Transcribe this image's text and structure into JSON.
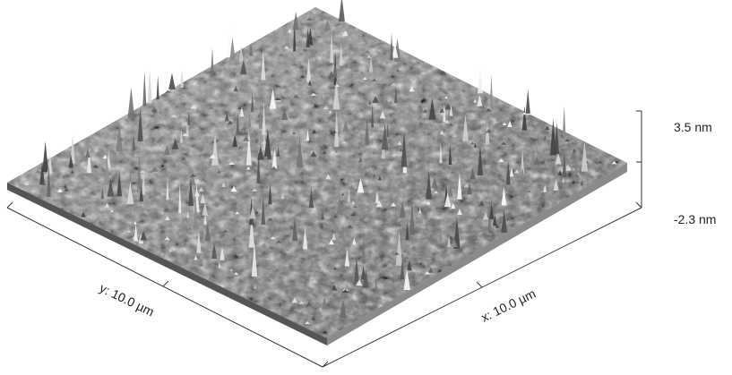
{
  "figure": {
    "z_scale": {
      "max_label": "3.5 nm",
      "min_label": "-2.3 nm"
    },
    "x_axis": {
      "label": "x: 10.0 µm"
    },
    "y_axis": {
      "label": "y: 10.0 µm"
    },
    "colors": {
      "surface_dark": "#2a2a2a",
      "surface_mid": "#7a7a7a",
      "surface_light": "#f2f2f2",
      "axis": "#333333"
    }
  }
}
